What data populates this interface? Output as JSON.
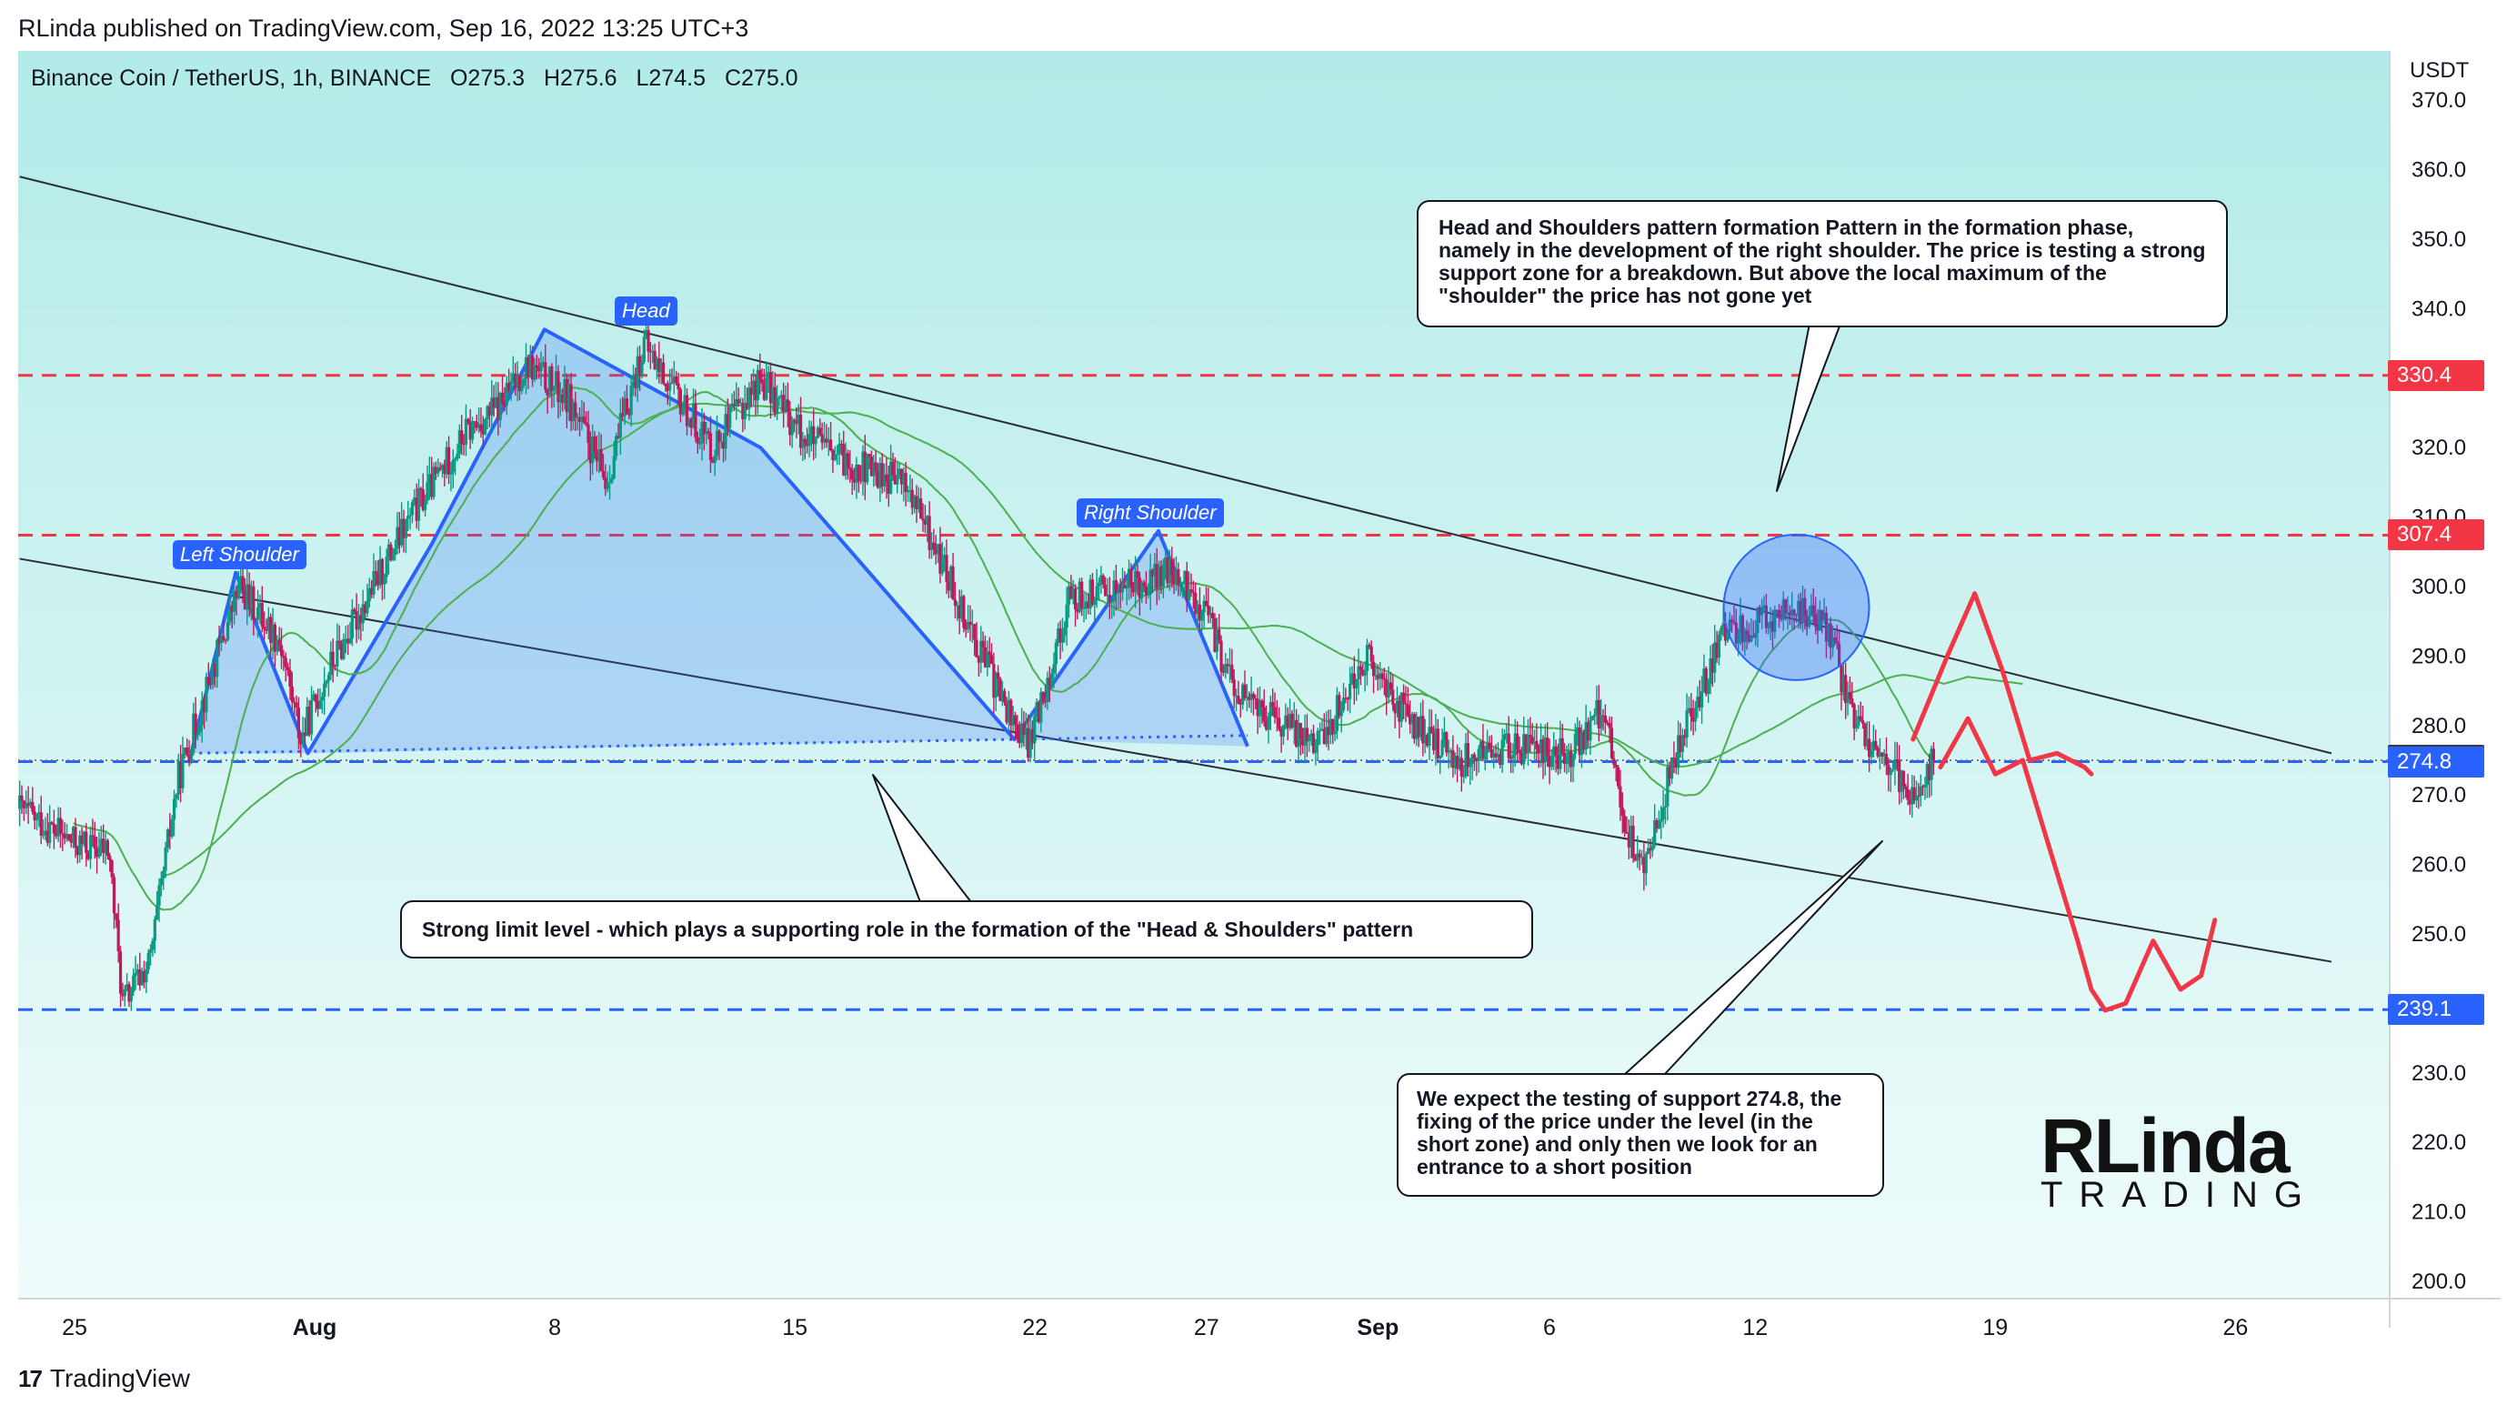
{
  "header": {
    "published": "RLinda published on TradingView.com, Sep 16, 2022 13:25 UTC+3"
  },
  "legend": {
    "symbol": "Binance Coin / TetherUS, 1h, BINANCE",
    "open": "O275.3",
    "high": "H275.6",
    "low": "L274.5",
    "close": "C275.0"
  },
  "axis": {
    "unit": "USDT"
  },
  "price_tags": [
    {
      "label": "330.4",
      "value": 330.4,
      "color": "#f23645"
    },
    {
      "label": "307.4",
      "value": 307.4,
      "color": "#f23645"
    },
    {
      "label": "275.0",
      "value": 275.0,
      "color": "#363a45"
    },
    {
      "label": "274.8",
      "value": 274.8,
      "color": "#2962ff"
    },
    {
      "label": "239.1",
      "value": 239.1,
      "color": "#2962ff"
    }
  ],
  "pattern_labels": {
    "left_shoulder": "Left Shoulder",
    "head": "Head",
    "right_shoulder": "Right Shoulder"
  },
  "callouts": {
    "top": "Head and Shoulders pattern formation Pattern in the formation phase, namely in the development of the right shoulder. The price is testing a strong support zone for a breakdown. But above the local maximum of the \"shoulder\" the price has not gone yet",
    "middle": "Strong limit level - which plays a supporting role in the formation of the \"Head & Shoulders\" pattern",
    "bottom": "We expect the testing of support 274.8, the fixing of the price under the level (in the short zone) and only then we look for an entrance to a short position"
  },
  "brand": {
    "big": "RLinda",
    "small": "TRADING"
  },
  "footer": {
    "logo": "17",
    "name": "TradingView"
  },
  "colors": {
    "candle_up": "#089981",
    "candle_down": "#c2185b",
    "resistance": "#f23645",
    "support": "#2962ff",
    "ma": "#4caf50",
    "bg_top": "#b2ebe8",
    "bg_bottom": "#effcfb",
    "forecast": "#f23645"
  },
  "chart_data": {
    "type": "candlestick",
    "title": "Binance Coin / TetherUS, 1h, BINANCE",
    "ylabel": "USDT",
    "ylim": [
      198,
      372
    ],
    "y_ticks": [
      200,
      210,
      220,
      230,
      240,
      250,
      260,
      270,
      280,
      290,
      300,
      310,
      320,
      330,
      340,
      350,
      360,
      370
    ],
    "x_ticks": [
      {
        "label": "25",
        "day": 0
      },
      {
        "label": "Aug",
        "day": 7
      },
      {
        "label": "8",
        "day": 14
      },
      {
        "label": "15",
        "day": 21
      },
      {
        "label": "22",
        "day": 28
      },
      {
        "label": "27",
        "day": 33
      },
      {
        "label": "Sep",
        "day": 38
      },
      {
        "label": "6",
        "day": 43
      },
      {
        "label": "12",
        "day": 49
      },
      {
        "label": "19",
        "day": 56
      },
      {
        "label": "26",
        "day": 63
      }
    ],
    "price_path": [
      {
        "day": -1.6,
        "price": 268
      },
      {
        "day": 0,
        "price": 263
      },
      {
        "day": 1.0,
        "price": 262
      },
      {
        "day": 1.4,
        "price": 240
      },
      {
        "day": 2.2,
        "price": 246
      },
      {
        "day": 3.0,
        "price": 272
      },
      {
        "day": 4.8,
        "price": 300
      },
      {
        "day": 6.0,
        "price": 292
      },
      {
        "day": 6.6,
        "price": 278
      },
      {
        "day": 7.4,
        "price": 288
      },
      {
        "day": 9.8,
        "price": 310
      },
      {
        "day": 11.4,
        "price": 322
      },
      {
        "day": 12.4,
        "price": 326
      },
      {
        "day": 13.2,
        "price": 332
      },
      {
        "day": 14.4,
        "price": 327
      },
      {
        "day": 15.5,
        "price": 315
      },
      {
        "day": 16.6,
        "price": 335
      },
      {
        "day": 17.6,
        "price": 327
      },
      {
        "day": 18.6,
        "price": 320
      },
      {
        "day": 20.0,
        "price": 330
      },
      {
        "day": 21.2,
        "price": 322
      },
      {
        "day": 22.4,
        "price": 318
      },
      {
        "day": 24.2,
        "price": 315
      },
      {
        "day": 25.6,
        "price": 300
      },
      {
        "day": 27.2,
        "price": 282
      },
      {
        "day": 27.8,
        "price": 277
      },
      {
        "day": 29.0,
        "price": 298
      },
      {
        "day": 30.6,
        "price": 300
      },
      {
        "day": 32.0,
        "price": 302
      },
      {
        "day": 33.0,
        "price": 296
      },
      {
        "day": 33.8,
        "price": 285
      },
      {
        "day": 35.2,
        "price": 280
      },
      {
        "day": 36.4,
        "price": 278
      },
      {
        "day": 37.6,
        "price": 290
      },
      {
        "day": 39.0,
        "price": 280
      },
      {
        "day": 40.4,
        "price": 275
      },
      {
        "day": 42.0,
        "price": 277
      },
      {
        "day": 43.6,
        "price": 276
      },
      {
        "day": 44.6,
        "price": 283
      },
      {
        "day": 45.2,
        "price": 265
      },
      {
        "day": 45.8,
        "price": 260
      },
      {
        "day": 46.8,
        "price": 278
      },
      {
        "day": 48.2,
        "price": 294
      },
      {
        "day": 49.4,
        "price": 295
      },
      {
        "day": 50.2,
        "price": 297
      },
      {
        "day": 51.2,
        "price": 293
      },
      {
        "day": 51.8,
        "price": 281
      },
      {
        "day": 52.8,
        "price": 275
      },
      {
        "day": 53.6,
        "price": 270
      },
      {
        "day": 54.2,
        "price": 275
      }
    ],
    "horizontal_levels": [
      {
        "price": 330.4,
        "style": "dashed",
        "color": "#f23645"
      },
      {
        "price": 307.4,
        "style": "dashed",
        "color": "#f23645"
      },
      {
        "price": 274.8,
        "style": "dashed",
        "color": "#2962ff"
      },
      {
        "price": 239.1,
        "style": "dashed",
        "color": "#2962ff"
      },
      {
        "price": 275.0,
        "style": "dotted",
        "color": "#787b86"
      }
    ],
    "trendlines": [
      {
        "from": {
          "day": -1.6,
          "price": 359
        },
        "to": {
          "day": 65.8,
          "price": 276
        }
      },
      {
        "from": {
          "day": -1.6,
          "price": 304
        },
        "to": {
          "day": 65.8,
          "price": 246
        }
      }
    ],
    "head_and_shoulders": [
      {
        "day": 3.4,
        "price": 276
      },
      {
        "day": 4.7,
        "price": 302
      },
      {
        "day": 6.8,
        "price": 276
      },
      {
        "day": 10.4,
        "price": 306
      },
      {
        "day": 13.7,
        "price": 337
      },
      {
        "day": 20.0,
        "price": 320
      },
      {
        "day": 27.4,
        "price": 278
      },
      {
        "day": 31.6,
        "price": 308
      },
      {
        "day": 34.2,
        "price": 277
      }
    ],
    "forecast_path": [
      {
        "day": 54.4,
        "price": 274
      },
      {
        "day": 55.2,
        "price": 281
      },
      {
        "day": 56.0,
        "price": 273
      },
      {
        "day": 56.8,
        "price": 275
      },
      {
        "day": 57.6,
        "price": 262
      },
      {
        "day": 58.4,
        "price": 249
      },
      {
        "day": 58.8,
        "price": 242
      },
      {
        "day": 59.2,
        "price": 239
      },
      {
        "day": 59.8,
        "price": 240
      },
      {
        "day": 60.6,
        "price": 249
      },
      {
        "day": 61.4,
        "price": 242
      },
      {
        "day": 62.0,
        "price": 244
      },
      {
        "day": 62.4,
        "price": 252
      }
    ],
    "forecast_path_2": [
      {
        "day": 53.6,
        "price": 278
      },
      {
        "day": 54.6,
        "price": 290
      },
      {
        "day": 55.4,
        "price": 299
      },
      {
        "day": 56.2,
        "price": 288
      },
      {
        "day": 57.0,
        "price": 275
      },
      {
        "day": 57.8,
        "price": 276
      },
      {
        "day": 58.6,
        "price": 274
      },
      {
        "day": 58.8,
        "price": 273
      }
    ]
  }
}
